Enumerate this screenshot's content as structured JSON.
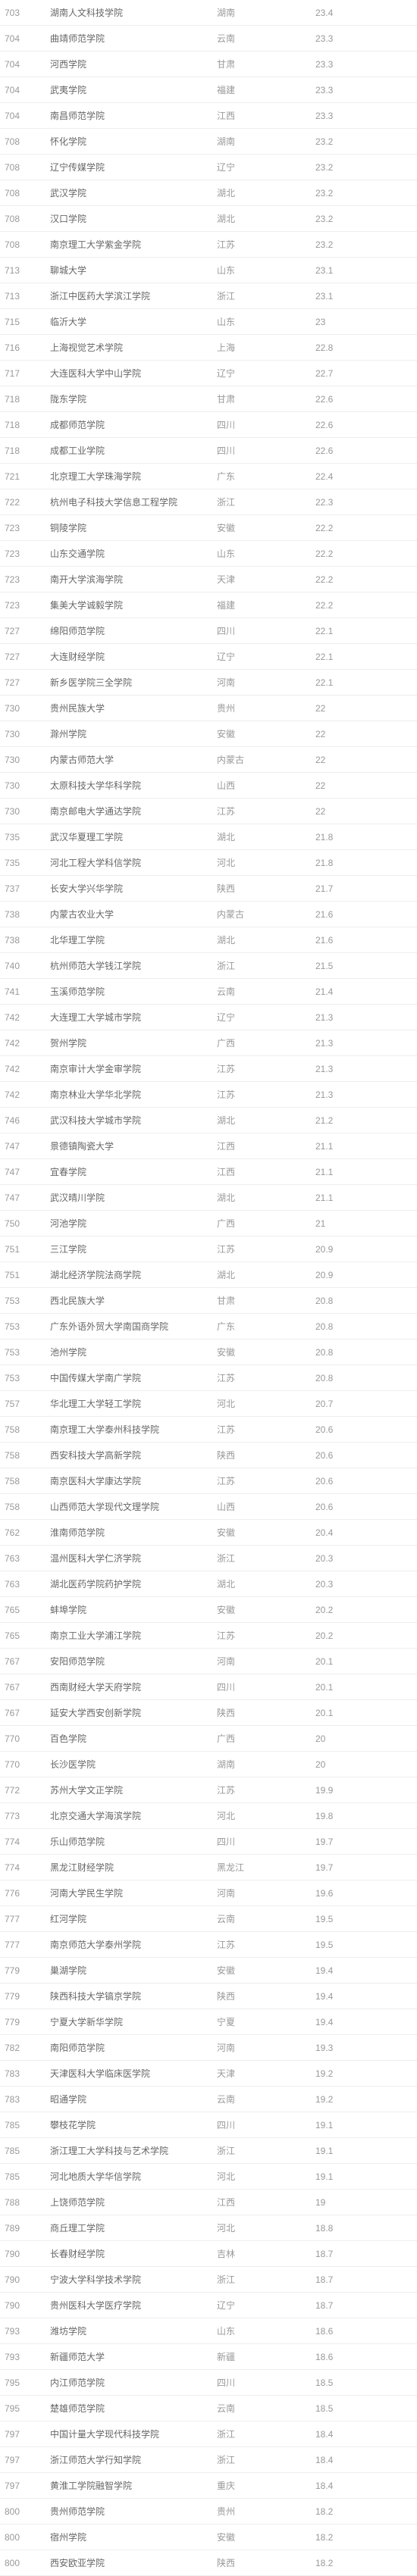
{
  "rows": [
    {
      "rank": "703",
      "name": "湖南人文科技学院",
      "prov": "湖南",
      "score": "23.4"
    },
    {
      "rank": "704",
      "name": "曲靖师范学院",
      "prov": "云南",
      "score": "23.3"
    },
    {
      "rank": "704",
      "name": "河西学院",
      "prov": "甘肃",
      "score": "23.3"
    },
    {
      "rank": "704",
      "name": "武夷学院",
      "prov": "福建",
      "score": "23.3"
    },
    {
      "rank": "704",
      "name": "南昌师范学院",
      "prov": "江西",
      "score": "23.3"
    },
    {
      "rank": "708",
      "name": "怀化学院",
      "prov": "湖南",
      "score": "23.2"
    },
    {
      "rank": "708",
      "name": "辽宁传媒学院",
      "prov": "辽宁",
      "score": "23.2"
    },
    {
      "rank": "708",
      "name": "武汉学院",
      "prov": "湖北",
      "score": "23.2"
    },
    {
      "rank": "708",
      "name": "汉口学院",
      "prov": "湖北",
      "score": "23.2"
    },
    {
      "rank": "708",
      "name": "南京理工大学紫金学院",
      "prov": "江苏",
      "score": "23.2"
    },
    {
      "rank": "713",
      "name": "聊城大学",
      "prov": "山东",
      "score": "23.1"
    },
    {
      "rank": "713",
      "name": "浙江中医药大学滨江学院",
      "prov": "浙江",
      "score": "23.1"
    },
    {
      "rank": "715",
      "name": "临沂大学",
      "prov": "山东",
      "score": "23"
    },
    {
      "rank": "716",
      "name": "上海视觉艺术学院",
      "prov": "上海",
      "score": "22.8"
    },
    {
      "rank": "717",
      "name": "大连医科大学中山学院",
      "prov": "辽宁",
      "score": "22.7"
    },
    {
      "rank": "718",
      "name": "陇东学院",
      "prov": "甘肃",
      "score": "22.6"
    },
    {
      "rank": "718",
      "name": "成都师范学院",
      "prov": "四川",
      "score": "22.6"
    },
    {
      "rank": "718",
      "name": "成都工业学院",
      "prov": "四川",
      "score": "22.6"
    },
    {
      "rank": "721",
      "name": "北京理工大学珠海学院",
      "prov": "广东",
      "score": "22.4"
    },
    {
      "rank": "722",
      "name": "杭州电子科技大学信息工程学院",
      "prov": "浙江",
      "score": "22.3"
    },
    {
      "rank": "723",
      "name": "铜陵学院",
      "prov": "安徽",
      "score": "22.2"
    },
    {
      "rank": "723",
      "name": "山东交通学院",
      "prov": "山东",
      "score": "22.2"
    },
    {
      "rank": "723",
      "name": "南开大学滨海学院",
      "prov": "天津",
      "score": "22.2"
    },
    {
      "rank": "723",
      "name": "集美大学诚毅学院",
      "prov": "福建",
      "score": "22.2"
    },
    {
      "rank": "727",
      "name": "绵阳师范学院",
      "prov": "四川",
      "score": "22.1"
    },
    {
      "rank": "727",
      "name": "大连财经学院",
      "prov": "辽宁",
      "score": "22.1"
    },
    {
      "rank": "727",
      "name": "新乡医学院三全学院",
      "prov": "河南",
      "score": "22.1"
    },
    {
      "rank": "730",
      "name": "贵州民族大学",
      "prov": "贵州",
      "score": "22"
    },
    {
      "rank": "730",
      "name": "滁州学院",
      "prov": "安徽",
      "score": "22"
    },
    {
      "rank": "730",
      "name": "内蒙古师范大学",
      "prov": "内蒙古",
      "score": "22"
    },
    {
      "rank": "730",
      "name": "太原科技大学华科学院",
      "prov": "山西",
      "score": "22"
    },
    {
      "rank": "730",
      "name": "南京邮电大学通达学院",
      "prov": "江苏",
      "score": "22"
    },
    {
      "rank": "735",
      "name": "武汉华夏理工学院",
      "prov": "湖北",
      "score": "21.8"
    },
    {
      "rank": "735",
      "name": "河北工程大学科信学院",
      "prov": "河北",
      "score": "21.8"
    },
    {
      "rank": "737",
      "name": "长安大学兴华学院",
      "prov": "陕西",
      "score": "21.7"
    },
    {
      "rank": "738",
      "name": "内蒙古农业大学",
      "prov": "内蒙古",
      "score": "21.6"
    },
    {
      "rank": "738",
      "name": "北华理工学院",
      "prov": "湖北",
      "score": "21.6"
    },
    {
      "rank": "740",
      "name": "杭州师范大学钱江学院",
      "prov": "浙江",
      "score": "21.5"
    },
    {
      "rank": "741",
      "name": "玉溪师范学院",
      "prov": "云南",
      "score": "21.4"
    },
    {
      "rank": "742",
      "name": "大连理工大学城市学院",
      "prov": "辽宁",
      "score": "21.3"
    },
    {
      "rank": "742",
      "name": "贺州学院",
      "prov": "广西",
      "score": "21.3"
    },
    {
      "rank": "742",
      "name": "南京审计大学金审学院",
      "prov": "江苏",
      "score": "21.3"
    },
    {
      "rank": "742",
      "name": "南京林业大学华北学院",
      "prov": "江苏",
      "score": "21.3"
    },
    {
      "rank": "746",
      "name": "武汉科技大学城市学院",
      "prov": "湖北",
      "score": "21.2"
    },
    {
      "rank": "747",
      "name": "景德镇陶瓷大学",
      "prov": "江西",
      "score": "21.1"
    },
    {
      "rank": "747",
      "name": "宜春学院",
      "prov": "江西",
      "score": "21.1"
    },
    {
      "rank": "747",
      "name": "武汉晴川学院",
      "prov": "湖北",
      "score": "21.1"
    },
    {
      "rank": "750",
      "name": "河池学院",
      "prov": "广西",
      "score": "21"
    },
    {
      "rank": "751",
      "name": "三江学院",
      "prov": "江苏",
      "score": "20.9"
    },
    {
      "rank": "751",
      "name": "湖北经济学院法商学院",
      "prov": "湖北",
      "score": "20.9"
    },
    {
      "rank": "753",
      "name": "西北民族大学",
      "prov": "甘肃",
      "score": "20.8"
    },
    {
      "rank": "753",
      "name": "广东外语外贸大学南国商学院",
      "prov": "广东",
      "score": "20.8"
    },
    {
      "rank": "753",
      "name": "池州学院",
      "prov": "安徽",
      "score": "20.8"
    },
    {
      "rank": "753",
      "name": "中国传媒大学南广学院",
      "prov": "江苏",
      "score": "20.8"
    },
    {
      "rank": "757",
      "name": "华北理工大学轻工学院",
      "prov": "河北",
      "score": "20.7"
    },
    {
      "rank": "758",
      "name": "南京理工大学泰州科技学院",
      "prov": "江苏",
      "score": "20.6"
    },
    {
      "rank": "758",
      "name": "西安科技大学高新学院",
      "prov": "陕西",
      "score": "20.6"
    },
    {
      "rank": "758",
      "name": "南京医科大学康达学院",
      "prov": "江苏",
      "score": "20.6"
    },
    {
      "rank": "758",
      "name": "山西师范大学现代文理学院",
      "prov": "山西",
      "score": "20.6"
    },
    {
      "rank": "762",
      "name": "淮南师范学院",
      "prov": "安徽",
      "score": "20.4"
    },
    {
      "rank": "763",
      "name": "温州医科大学仁济学院",
      "prov": "浙江",
      "score": "20.3"
    },
    {
      "rank": "763",
      "name": "湖北医药学院药护学院",
      "prov": "湖北",
      "score": "20.3"
    },
    {
      "rank": "765",
      "name": "蚌埠学院",
      "prov": "安徽",
      "score": "20.2"
    },
    {
      "rank": "765",
      "name": "南京工业大学浦江学院",
      "prov": "江苏",
      "score": "20.2"
    },
    {
      "rank": "767",
      "name": "安阳师范学院",
      "prov": "河南",
      "score": "20.1"
    },
    {
      "rank": "767",
      "name": "西南财经大学天府学院",
      "prov": "四川",
      "score": "20.1"
    },
    {
      "rank": "767",
      "name": "延安大学西安创新学院",
      "prov": "陕西",
      "score": "20.1"
    },
    {
      "rank": "770",
      "name": "百色学院",
      "prov": "广西",
      "score": "20"
    },
    {
      "rank": "770",
      "name": "长沙医学院",
      "prov": "湖南",
      "score": "20"
    },
    {
      "rank": "772",
      "name": "苏州大学文正学院",
      "prov": "江苏",
      "score": "19.9"
    },
    {
      "rank": "773",
      "name": "北京交通大学海滨学院",
      "prov": "河北",
      "score": "19.8"
    },
    {
      "rank": "774",
      "name": "乐山师范学院",
      "prov": "四川",
      "score": "19.7"
    },
    {
      "rank": "774",
      "name": "黑龙江财经学院",
      "prov": "黑龙江",
      "score": "19.7"
    },
    {
      "rank": "776",
      "name": "河南大学民生学院",
      "prov": "河南",
      "score": "19.6"
    },
    {
      "rank": "777",
      "name": "红河学院",
      "prov": "云南",
      "score": "19.5"
    },
    {
      "rank": "777",
      "name": "南京师范大学泰州学院",
      "prov": "江苏",
      "score": "19.5"
    },
    {
      "rank": "779",
      "name": "巢湖学院",
      "prov": "安徽",
      "score": "19.4"
    },
    {
      "rank": "779",
      "name": "陕西科技大学镐京学院",
      "prov": "陕西",
      "score": "19.4"
    },
    {
      "rank": "779",
      "name": "宁夏大学新华学院",
      "prov": "宁夏",
      "score": "19.4"
    },
    {
      "rank": "782",
      "name": "南阳师范学院",
      "prov": "河南",
      "score": "19.3"
    },
    {
      "rank": "783",
      "name": "天津医科大学临床医学院",
      "prov": "天津",
      "score": "19.2"
    },
    {
      "rank": "783",
      "name": "昭通学院",
      "prov": "云南",
      "score": "19.2"
    },
    {
      "rank": "785",
      "name": "攀枝花学院",
      "prov": "四川",
      "score": "19.1"
    },
    {
      "rank": "785",
      "name": "浙江理工大学科技与艺术学院",
      "prov": "浙江",
      "score": "19.1"
    },
    {
      "rank": "785",
      "name": "河北地质大学华信学院",
      "prov": "河北",
      "score": "19.1"
    },
    {
      "rank": "788",
      "name": "上饶师范学院",
      "prov": "江西",
      "score": "19"
    },
    {
      "rank": "789",
      "name": "商丘理工学院",
      "prov": "河北",
      "score": "18.8"
    },
    {
      "rank": "790",
      "name": "长春财经学院",
      "prov": "吉林",
      "score": "18.7"
    },
    {
      "rank": "790",
      "name": "宁波大学科学技术学院",
      "prov": "浙江",
      "score": "18.7"
    },
    {
      "rank": "790",
      "name": "贵州医科大学医疗学院",
      "prov": "辽宁",
      "score": "18.7"
    },
    {
      "rank": "793",
      "name": "潍坊学院",
      "prov": "山东",
      "score": "18.6"
    },
    {
      "rank": "793",
      "name": "新疆师范大学",
      "prov": "新疆",
      "score": "18.6"
    },
    {
      "rank": "795",
      "name": "内江师范学院",
      "prov": "四川",
      "score": "18.5"
    },
    {
      "rank": "795",
      "name": "楚雄师范学院",
      "prov": "云南",
      "score": "18.5"
    },
    {
      "rank": "797",
      "name": "中国计量大学现代科技学院",
      "prov": "浙江",
      "score": "18.4"
    },
    {
      "rank": "797",
      "name": "浙江师范大学行知学院",
      "prov": "浙江",
      "score": "18.4"
    },
    {
      "rank": "797",
      "name": "黄淮工学院融智学院",
      "prov": "重庆",
      "score": "18.4"
    },
    {
      "rank": "800",
      "name": "贵州师范学院",
      "prov": "贵州",
      "score": "18.2"
    },
    {
      "rank": "800",
      "name": "宿州学院",
      "prov": "安徽",
      "score": "18.2"
    },
    {
      "rank": "800",
      "name": "西安欧亚学院",
      "prov": "陕西",
      "score": "18.2"
    }
  ]
}
